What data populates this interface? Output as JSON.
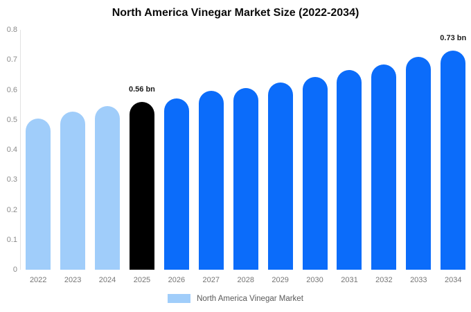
{
  "chart_data": {
    "type": "bar",
    "title": "North America Vinegar Market Size (2022-2034)",
    "categories": [
      "2022",
      "2023",
      "2024",
      "2025",
      "2026",
      "2027",
      "2028",
      "2029",
      "2030",
      "2031",
      "2032",
      "2033",
      "2034"
    ],
    "values": [
      0.505,
      0.527,
      0.546,
      0.56,
      0.57,
      0.596,
      0.606,
      0.625,
      0.642,
      0.666,
      0.684,
      0.71,
      0.73
    ],
    "unit": "bn",
    "bar_colors": [
      "#a0cdfa",
      "#a0cdfa",
      "#a0cdfa",
      "#000000",
      "#0b6cfa",
      "#0b6cfa",
      "#0b6cfa",
      "#0b6cfa",
      "#0b6cfa",
      "#0b6cfa",
      "#0b6cfa",
      "#0b6cfa",
      "#0b6cfa"
    ],
    "value_labels": [
      {
        "category": "2025",
        "text": "0.56 bn"
      },
      {
        "category": "2034",
        "text": "0.73 bn"
      }
    ],
    "ylim": [
      0,
      0.8
    ],
    "yticks": [
      "0",
      "0.1",
      "0.2",
      "0.3",
      "0.4",
      "0.5",
      "0.6",
      "0.7",
      "0.8"
    ],
    "grid": false,
    "legend": {
      "position": "bottom",
      "items": [
        {
          "label": "North America Vinegar Market",
          "color": "#a0cdfa"
        }
      ]
    }
  },
  "colors": {
    "background": "#ffffff",
    "historical_bar": "#a0cdfa",
    "highlight_bar": "#000000",
    "forecast_bar": "#0b6cfa",
    "axis_line": "#e2e2e2",
    "tick_text": "#8a8a8a",
    "year_text": "#757575",
    "legend_text": "#595959",
    "annotation_text": "#1a1a1a"
  }
}
